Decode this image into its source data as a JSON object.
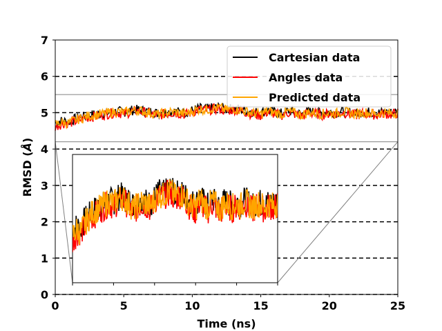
{
  "chart_data": {
    "type": "line",
    "title": "",
    "xlabel": "Time (ns)",
    "ylabel": "RMSD (Å)",
    "ylabel_parts": {
      "prefix": "RMSD (",
      "unit": "Å",
      "suffix": ")"
    },
    "xlim": [
      0,
      25
    ],
    "ylim": [
      0,
      7
    ],
    "xticks": [
      0,
      5,
      10,
      15,
      20,
      25
    ],
    "yticks": [
      0,
      1,
      2,
      3,
      4,
      5,
      6,
      7
    ],
    "xtick_labels": [
      "0",
      "5",
      "10",
      "15",
      "20",
      "25"
    ],
    "ytick_labels": [
      "0",
      "1",
      "2",
      "3",
      "4",
      "5",
      "6",
      "7"
    ],
    "hlines": [
      0,
      1,
      2,
      3,
      4,
      5,
      6
    ],
    "legend_position": "top-right",
    "series": [
      {
        "name": "Cartesian data",
        "color": "#000000",
        "x": [
          0,
          0.5,
          1,
          1.5,
          2,
          2.5,
          3,
          3.5,
          4,
          4.5,
          5,
          5.5,
          6,
          6.5,
          7,
          7.5,
          8,
          8.5,
          9,
          9.5,
          10,
          10.5,
          11,
          11.5,
          12,
          12.5,
          13,
          13.5,
          14,
          14.5,
          15,
          15.5,
          16,
          16.5,
          17,
          17.5,
          18,
          18.5,
          19,
          19.5,
          20,
          20.5,
          21,
          21.5,
          22,
          22.5,
          23,
          23.5,
          24,
          24.5,
          25
        ],
        "values": [
          4.72,
          4.78,
          4.75,
          4.84,
          4.88,
          4.93,
          4.96,
          4.98,
          5.01,
          5.04,
          5.02,
          5.06,
          5.08,
          5.05,
          5.03,
          4.98,
          5.01,
          5.04,
          5.02,
          5.0,
          5.06,
          5.12,
          5.1,
          5.13,
          5.15,
          5.09,
          5.12,
          5.1,
          5.06,
          5.02,
          5.0,
          5.07,
          5.02,
          4.98,
          5.05,
          5.0,
          4.96,
          5.03,
          5.01,
          4.99,
          5.02,
          5.0,
          5.04,
          5.01,
          4.98,
          5.03,
          5.01,
          4.99,
          5.02,
          5.0,
          5.03
        ]
      },
      {
        "name": "Angles data",
        "color": "#ff0000",
        "x": [
          0,
          0.5,
          1,
          1.5,
          2,
          2.5,
          3,
          3.5,
          4,
          4.5,
          5,
          5.5,
          6,
          6.5,
          7,
          7.5,
          8,
          8.5,
          9,
          9.5,
          10,
          10.5,
          11,
          11.5,
          12,
          12.5,
          13,
          13.5,
          14,
          14.5,
          15,
          15.5,
          16,
          16.5,
          17,
          17.5,
          18,
          18.5,
          19,
          19.5,
          20,
          20.5,
          21,
          21.5,
          22,
          22.5,
          23,
          23.5,
          24,
          24.5,
          25
        ],
        "values": [
          4.62,
          4.7,
          4.72,
          4.76,
          4.82,
          4.88,
          4.9,
          4.94,
          4.98,
          5.0,
          4.97,
          5.02,
          5.05,
          5.01,
          4.96,
          4.92,
          4.97,
          5.0,
          4.98,
          4.95,
          5.02,
          5.08,
          5.06,
          5.1,
          5.11,
          5.04,
          5.09,
          5.06,
          5.0,
          4.95,
          4.92,
          5.02,
          4.97,
          4.93,
          5.0,
          4.96,
          4.9,
          4.99,
          4.97,
          4.94,
          4.98,
          4.96,
          5.01,
          4.97,
          4.93,
          4.99,
          4.96,
          4.94,
          4.98,
          4.95,
          4.99
        ]
      },
      {
        "name": "Predicted data",
        "color": "#ffa500",
        "x": [
          0,
          0.5,
          1,
          1.5,
          2,
          2.5,
          3,
          3.5,
          4,
          4.5,
          5,
          5.5,
          6,
          6.5,
          7,
          7.5,
          8,
          8.5,
          9,
          9.5,
          10,
          10.5,
          11,
          11.5,
          12,
          12.5,
          13,
          13.5,
          14,
          14.5,
          15,
          15.5,
          16,
          16.5,
          17,
          17.5,
          18,
          18.5,
          19,
          19.5,
          20,
          20.5,
          21,
          21.5,
          22,
          22.5,
          23,
          23.5,
          24,
          24.5,
          25
        ],
        "values": [
          4.68,
          4.74,
          4.71,
          4.8,
          4.86,
          4.92,
          4.94,
          4.97,
          5.0,
          5.03,
          5.0,
          5.05,
          5.07,
          5.03,
          4.99,
          4.95,
          4.99,
          5.02,
          5.0,
          4.97,
          5.04,
          5.1,
          5.08,
          5.12,
          5.13,
          5.07,
          5.11,
          5.08,
          5.03,
          4.98,
          4.96,
          5.05,
          5.0,
          4.96,
          5.03,
          4.99,
          4.94,
          5.01,
          4.99,
          4.97,
          5.0,
          4.98,
          5.03,
          4.99,
          4.96,
          5.01,
          4.99,
          4.97,
          5.0,
          4.98,
          5.01
        ]
      }
    ],
    "inset": {
      "description_free": true,
      "ylim": [
        4.2,
        5.5
      ],
      "xlim": [
        0,
        25
      ]
    }
  }
}
